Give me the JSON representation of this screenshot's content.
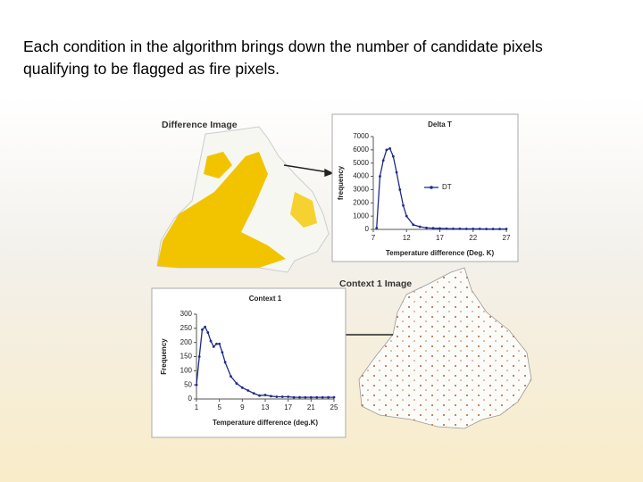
{
  "slide": {
    "text": [
      "Each condition in the algorithm brings down the number of candidate pixels",
      "qualifying to be flagged as fire pixels."
    ],
    "images": [
      {
        "label": "Difference Image"
      },
      {
        "label": "Context 1 Image"
      }
    ]
  },
  "chart_data": [
    {
      "type": "line",
      "title": "Delta T",
      "x_label": "Temperature difference (Deg. K)",
      "y_label": "frequency",
      "x": [
        7.5,
        8,
        8.5,
        9,
        9.5,
        10,
        10.5,
        11,
        11.5,
        12,
        13,
        14,
        15,
        16,
        17,
        18,
        19,
        20,
        21,
        22,
        23,
        24,
        25,
        26,
        27
      ],
      "series": [
        {
          "name": "DT",
          "color": "#1f2a8a",
          "values": [
            100,
            4000,
            5200,
            6000,
            6100,
            5500,
            4300,
            3000,
            1800,
            1000,
            350,
            200,
            120,
            90,
            70,
            60,
            50,
            50,
            40,
            40,
            40,
            30,
            30,
            30,
            30
          ]
        }
      ],
      "xlim": [
        7,
        27
      ],
      "xticks": [
        7,
        12,
        17,
        22,
        27
      ],
      "ylim": [
        0,
        7000
      ],
      "yticks": [
        0,
        1000,
        2000,
        3000,
        4000,
        5000,
        6000,
        7000
      ],
      "legend": "right"
    },
    {
      "type": "line",
      "title": "Context 1",
      "x_label": "Temperature difference (deg.K)",
      "y_label": "Frequency",
      "x": [
        1,
        1.5,
        2,
        2.5,
        3,
        3.5,
        4,
        4.5,
        5,
        5.5,
        6,
        7,
        8,
        9,
        10,
        11,
        12,
        13,
        14,
        15,
        16,
        17,
        18,
        19,
        20,
        21,
        22,
        23,
        24,
        25
      ],
      "series": [
        {
          "color": "#1f2a8a",
          "values": [
            50,
            150,
            245,
            255,
            235,
            205,
            185,
            195,
            195,
            165,
            130,
            80,
            55,
            40,
            30,
            20,
            12,
            14,
            10,
            8,
            8,
            8,
            6,
            6,
            6,
            6,
            6,
            6,
            6,
            6
          ]
        }
      ],
      "xlim": [
        1,
        25
      ],
      "xticks": [
        1,
        5,
        9,
        13,
        17,
        21,
        25
      ],
      "ylim": [
        0,
        300
      ],
      "yticks": [
        0,
        50,
        100,
        150,
        200,
        250,
        300
      ]
    }
  ]
}
